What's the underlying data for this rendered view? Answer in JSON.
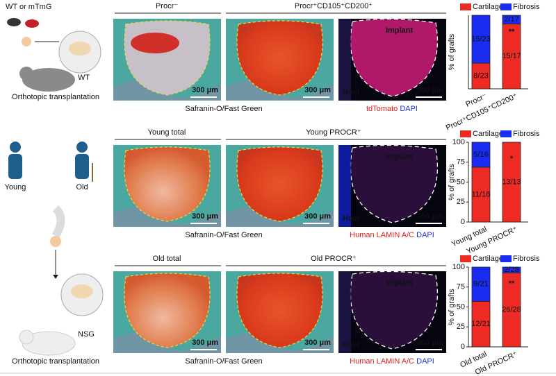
{
  "rows": [
    {
      "left_labels": [
        "WT or mTmG",
        "WT",
        "Orthotopic transplantation"
      ],
      "headers": [
        "Procr⁻",
        "Procr⁺CD105⁺CD200⁺"
      ],
      "scale_bars": [
        "300 μm",
        "300 μm",
        "300 μm"
      ],
      "fluor_labels": [
        "Implant",
        "Host"
      ],
      "stain_caption": "Safranin-O/Fast Green",
      "fluor_caption": [
        "tdTomato",
        "DAPI"
      ]
    },
    {
      "left_labels": [
        "Young",
        "Old"
      ],
      "headers": [
        "Young total",
        "Young PROCR⁺"
      ],
      "scale_bars": [
        "300 μm",
        "300 μm",
        "300 μm"
      ],
      "fluor_labels": [
        "Implant",
        "Host"
      ],
      "stain_caption": "Safranin-O/Fast Green",
      "fluor_caption": [
        "Human LAMIN A/C",
        "DAPI"
      ]
    },
    {
      "left_labels": [
        "NSG",
        "Orthotopic transplantation"
      ],
      "headers": [
        "Old total",
        "Old PROCR⁺"
      ],
      "scale_bars": [
        "300 μm",
        "300 μm",
        "300 μm"
      ],
      "fluor_labels": [
        "Implant",
        "Host"
      ],
      "stain_caption": "Safranin-O/Fast Green",
      "fluor_caption": [
        "Human LAMIN A/C",
        "DAPI"
      ]
    }
  ],
  "chart_data": [
    {
      "type": "stacked_bar",
      "y_label": "% of grafts",
      "categories": [
        "Procr⁻",
        "Procr⁺CD105⁺CD200⁺"
      ],
      "series": [
        {
          "name": "Cartilage",
          "color": "#ee2a24",
          "values": [
            34.8,
            88.2
          ],
          "value_labels": [
            "8/23",
            "15/17"
          ]
        },
        {
          "name": "Fibrosis",
          "color": "#1a2cf0",
          "values": [
            65.2,
            11.8
          ],
          "value_labels": [
            "15/23",
            "2/17"
          ]
        }
      ],
      "significance": [
        null,
        "**"
      ],
      "ylim": [
        0,
        100
      ]
    },
    {
      "type": "stacked_bar",
      "y_label": "% of grafts",
      "categories": [
        "Young total",
        "Young PROCR⁺"
      ],
      "series": [
        {
          "name": "Cartilage",
          "color": "#ee2a24",
          "values": [
            68.75,
            100
          ],
          "value_labels": [
            "11/16",
            "13/13"
          ]
        },
        {
          "name": "Fibrosis",
          "color": "#1a2cf0",
          "values": [
            31.25,
            0
          ],
          "value_labels": [
            "5/16",
            null
          ]
        }
      ],
      "significance": [
        null,
        "*"
      ],
      "ylim": [
        0,
        100
      ],
      "yticks": [
        0,
        25,
        50,
        75,
        100
      ]
    },
    {
      "type": "stacked_bar",
      "y_label": "% of grafts",
      "categories": [
        "Old total",
        "Old PROCR⁺"
      ],
      "series": [
        {
          "name": "Cartilage",
          "color": "#ee2a24",
          "values": [
            57.14,
            92.86
          ],
          "value_labels": [
            "12/21",
            "26/28"
          ]
        },
        {
          "name": "Fibrosis",
          "color": "#1a2cf0",
          "values": [
            42.86,
            7.14
          ],
          "value_labels": [
            "9/21",
            "2/28"
          ]
        }
      ],
      "significance": [
        null,
        "**"
      ],
      "ylim": [
        0,
        100
      ],
      "yticks": [
        0,
        25,
        50,
        75,
        100
      ]
    }
  ]
}
